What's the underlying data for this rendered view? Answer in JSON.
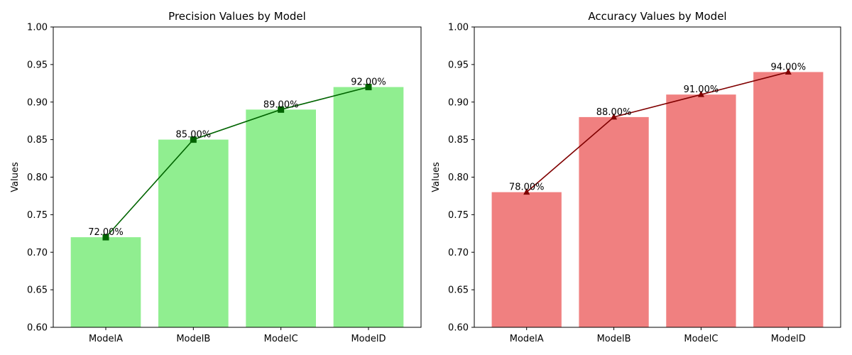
{
  "chart_data": [
    {
      "type": "bar",
      "title": "Precision Values by Model",
      "xlabel": "",
      "ylabel": "Values",
      "categories": [
        "ModelA",
        "ModelB",
        "ModelC",
        "ModelD"
      ],
      "values": [
        0.72,
        0.85,
        0.89,
        0.92
      ],
      "data_labels": [
        "72.00%",
        "85.00%",
        "89.00%",
        "92.00%"
      ],
      "ylim": [
        0.6,
        1.0
      ],
      "yticks": [
        "0.60",
        "0.65",
        "0.70",
        "0.75",
        "0.80",
        "0.85",
        "0.90",
        "0.95",
        "1.00"
      ],
      "bar_color": "#90ee90",
      "line_color": "#006400",
      "marker": "square",
      "grid": false
    },
    {
      "type": "bar",
      "title": "Accuracy Values by Model",
      "xlabel": "",
      "ylabel": "Values",
      "categories": [
        "ModelA",
        "ModelB",
        "ModelC",
        "ModelD"
      ],
      "values": [
        0.78,
        0.88,
        0.91,
        0.94
      ],
      "data_labels": [
        "78.00%",
        "88.00%",
        "91.00%",
        "94.00%"
      ],
      "ylim": [
        0.6,
        1.0
      ],
      "yticks": [
        "0.60",
        "0.65",
        "0.70",
        "0.75",
        "0.80",
        "0.85",
        "0.90",
        "0.95",
        "1.00"
      ],
      "bar_color": "#f08080",
      "line_color": "#800000",
      "marker": "triangle",
      "grid": false
    }
  ]
}
